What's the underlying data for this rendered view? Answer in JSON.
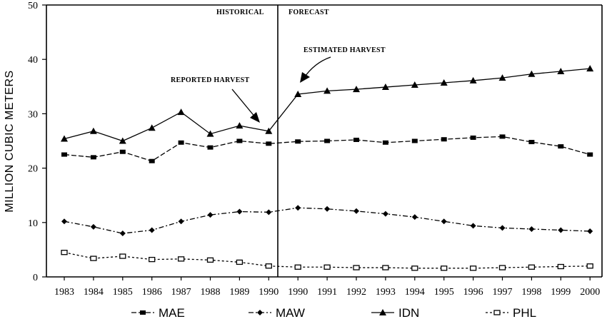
{
  "chart_data": {
    "type": "line",
    "title": "",
    "ylabel": "MILLION CUBIC METERS",
    "xlabel": "",
    "ylim": [
      0,
      50
    ],
    "yticks": [
      0,
      10,
      20,
      30,
      40,
      50
    ],
    "grid": false,
    "legend_position": "bottom",
    "categories": [
      "1983",
      "1984",
      "1985",
      "1986",
      "1987",
      "1988",
      "1989",
      "1990",
      "1990",
      "1991",
      "1992",
      "1993",
      "1994",
      "1995",
      "1996",
      "1997",
      "1998",
      "1999",
      "2000"
    ],
    "period_labels": {
      "historical": "HISTORICAL",
      "forecast": "FORECAST"
    },
    "annotations": {
      "reported": "REPORTED HARVEST",
      "estimated": "ESTIMATED HARVEST"
    },
    "series": [
      {
        "name": "MAE",
        "marker": "square-filled",
        "values": [
          22.5,
          22,
          23,
          21.3,
          24.7,
          23.8,
          25,
          24.5,
          24.9,
          25,
          25.2,
          24.7,
          25,
          25.3,
          25.6,
          25.8,
          24.8,
          24,
          22.5
        ]
      },
      {
        "name": "MAW",
        "marker": "diamond-filled",
        "values": [
          10.2,
          9.2,
          8,
          8.6,
          10.2,
          11.4,
          12,
          11.9,
          12.7,
          12.5,
          12.1,
          11.6,
          11,
          10.2,
          9.4,
          9,
          8.8,
          8.6,
          8.4
        ]
      },
      {
        "name": "IDN",
        "marker": "triangle-filled",
        "values": [
          25.4,
          26.8,
          25,
          27.4,
          30.3,
          26.3,
          27.8,
          26.8,
          33.6,
          34.2,
          34.5,
          34.9,
          35.3,
          35.7,
          36.1,
          36.6,
          37.3,
          37.8,
          38.3
        ]
      },
      {
        "name": "PHL",
        "marker": "square-open",
        "values": [
          4.5,
          3.4,
          3.8,
          3.2,
          3.3,
          3.1,
          2.7,
          2,
          1.8,
          1.8,
          1.7,
          1.7,
          1.6,
          1.6,
          1.6,
          1.7,
          1.8,
          1.9,
          2
        ]
      }
    ]
  }
}
